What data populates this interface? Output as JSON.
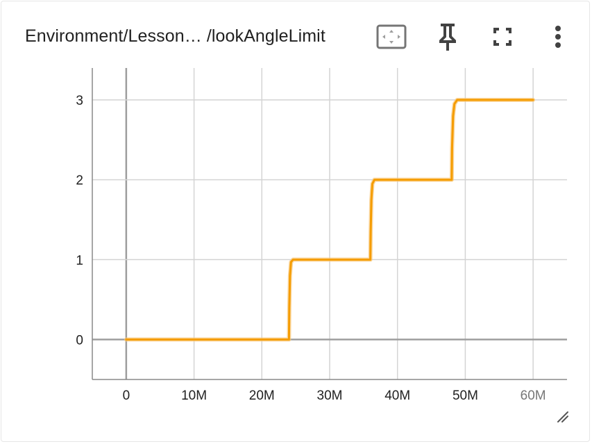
{
  "card": {
    "title": "Environment/Lesson… /lookAngleLimit"
  },
  "toolbar": {
    "fit_icon": "fit-domain-icon",
    "pin_icon": "pin-icon",
    "fullscreen_icon": "fullscreen-icon",
    "menu_icon": "more-vert-icon"
  },
  "colors": {
    "series": "#f59c00",
    "series_smoothed_shadow": "#f8c87a",
    "grid": "#d4d4d4",
    "axis": "#888888",
    "zero_line": "#9e9e9e",
    "text": "#212121"
  },
  "chart_data": {
    "type": "line",
    "title": "Environment/Lesson… /lookAngleLimit",
    "xlabel": "",
    "ylabel": "",
    "xlim": [
      -5000000,
      65000000
    ],
    "ylim": [
      -0.5,
      3.4
    ],
    "x_ticks": [
      0,
      10000000,
      20000000,
      30000000,
      40000000,
      50000000,
      60000000
    ],
    "x_tick_labels": [
      "0",
      "10M",
      "20M",
      "30M",
      "40M",
      "50M",
      "60M"
    ],
    "y_ticks": [
      0,
      1,
      2,
      3
    ],
    "y_tick_labels": [
      "0",
      "1",
      "2",
      "3"
    ],
    "grid": true,
    "series": [
      {
        "color": "#f59c00",
        "x": [
          0,
          24000000,
          24050000,
          24150000,
          24300000,
          24600000,
          36000000,
          36050000,
          36150000,
          36300000,
          36600000,
          48000000,
          48050000,
          48200000,
          48400000,
          48800000,
          60000000
        ],
        "y": [
          0,
          0,
          0.4,
          0.8,
          0.97,
          1,
          1,
          1.35,
          1.75,
          1.95,
          2,
          2,
          2.4,
          2.8,
          2.95,
          3,
          3
        ]
      }
    ]
  }
}
